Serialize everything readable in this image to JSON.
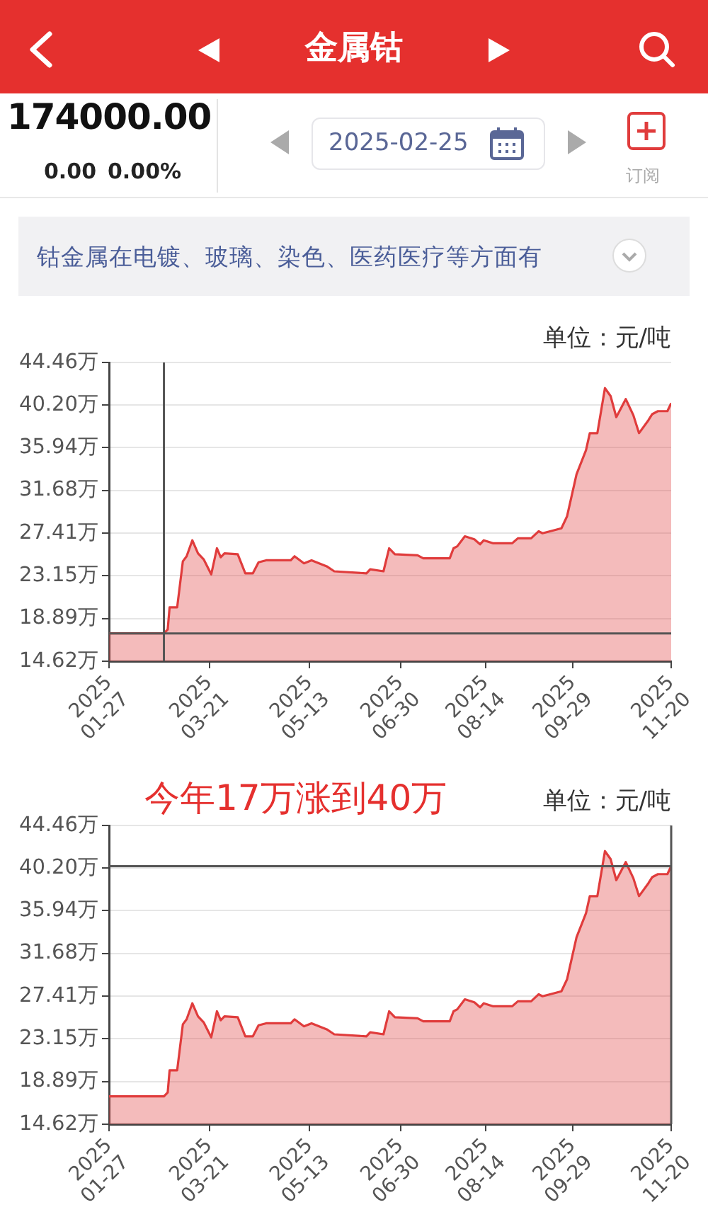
{
  "chart_data": [
    {
      "type": "other",
      "title": "金属钴",
      "annotations": [
        "174000.00",
        "0.00",
        "0.00%",
        "2025-02-25",
        "订阅",
        "钴金属在电镀、玻璃、染色、医药医疗等方面有"
      ]
    },
    {
      "type": "area",
      "annotations": [
        "单位：元/吨"
      ],
      "x": [
        "2025-01-27",
        "2025-02-20",
        "2025-02-25",
        "2025-02-27",
        "2025-02-28",
        "2025-03-04",
        "2025-03-07",
        "2025-03-09",
        "2025-03-12",
        "2025-03-15",
        "2025-03-18",
        "2025-03-22",
        "2025-03-25",
        "2025-03-27",
        "2025-03-29",
        "2025-04-05",
        "2025-04-09",
        "2025-04-13",
        "2025-04-16",
        "2025-04-20",
        "2025-05-03",
        "2025-05-05",
        "2025-05-10",
        "2025-05-14",
        "2025-05-22",
        "2025-05-26",
        "2025-06-12",
        "2025-06-14",
        "2025-06-21",
        "2025-06-24",
        "2025-06-27",
        "2025-07-09",
        "2025-07-12",
        "2025-07-26",
        "2025-07-28",
        "2025-07-30",
        "2025-08-03",
        "2025-08-08",
        "2025-08-11",
        "2025-08-13",
        "2025-08-18",
        "2025-08-28",
        "2025-08-31",
        "2025-09-07",
        "2025-09-11",
        "2025-09-13",
        "2025-09-17",
        "2025-09-23",
        "2025-09-26",
        "2025-10-01",
        "2025-10-06",
        "2025-10-08",
        "2025-10-12",
        "2025-10-16",
        "2025-10-19",
        "2025-10-22",
        "2025-10-27",
        "2025-10-31",
        "2025-11-03",
        "2025-11-08",
        "2025-11-10",
        "2025-11-13",
        "2025-11-18",
        "2025-11-20"
      ],
      "series": [
        {
          "color": "#e03c3c",
          "values": [
            17.4,
            17.4,
            17.4,
            17.8,
            20.0,
            20.0,
            24.6,
            25.1,
            26.7,
            25.4,
            24.8,
            23.3,
            25.9,
            25.0,
            25.4,
            25.3,
            23.4,
            23.4,
            24.5,
            24.7,
            24.7,
            25.1,
            24.4,
            24.7,
            24.1,
            23.6,
            23.4,
            23.8,
            23.6,
            25.9,
            25.3,
            25.2,
            24.9,
            24.9,
            25.9,
            26.1,
            27.1,
            26.8,
            26.3,
            26.7,
            26.4,
            26.4,
            26.9,
            26.9,
            27.6,
            27.4,
            27.6,
            27.9,
            29.1,
            33.3,
            35.7,
            37.4,
            37.4,
            41.9,
            41.1,
            39.0,
            40.8,
            39.2,
            37.4,
            38.7,
            39.3,
            39.6,
            39.6,
            40.4
          ]
        }
      ],
      "xlim": [
        "2025-01-27",
        "2025-11-20"
      ],
      "xticks": [
        {
          "value": "2025-01-27",
          "label": "2025\n01-27"
        },
        {
          "value": "2025-03-21",
          "label": "2025\n03-21"
        },
        {
          "value": "2025-05-13",
          "label": "2025\n05-13"
        },
        {
          "value": "2025-06-30",
          "label": "2025\n06-30"
        },
        {
          "value": "2025-08-14",
          "label": "2025\n08-14"
        },
        {
          "value": "2025-09-29",
          "label": "2025\n09-29"
        },
        {
          "value": "2025-11-20",
          "label": "2025\n11-20"
        }
      ],
      "ylim": [
        14.62,
        44.46
      ],
      "yticks": [
        {
          "value": 14.62,
          "label": "14.62万"
        },
        {
          "value": 18.89,
          "label": "18.89万"
        },
        {
          "value": 23.15,
          "label": "23.15万"
        },
        {
          "value": 27.41,
          "label": "27.41万"
        },
        {
          "value": 31.68,
          "label": "31.68万"
        },
        {
          "value": 35.94,
          "label": "35.94万"
        },
        {
          "value": 40.2,
          "label": "40.20万"
        },
        {
          "value": 44.46,
          "label": "44.46万"
        }
      ],
      "ref_lines": [
        {
          "axis": "x",
          "value": "2025-02-25",
          "color": "#555555"
        },
        {
          "axis": "y",
          "value": 17.4,
          "color": "#555555"
        }
      ],
      "grid": "y",
      "legend": false,
      "marker": "none",
      "line_style": "solid"
    },
    {
      "type": "area",
      "title": "今年17万涨到40万",
      "annotations": [
        "单位：元/吨"
      ],
      "x": [
        "2025-01-27",
        "2025-02-20",
        "2025-02-25",
        "2025-02-27",
        "2025-02-28",
        "2025-03-04",
        "2025-03-07",
        "2025-03-09",
        "2025-03-12",
        "2025-03-15",
        "2025-03-18",
        "2025-03-22",
        "2025-03-25",
        "2025-03-27",
        "2025-03-29",
        "2025-04-05",
        "2025-04-09",
        "2025-04-13",
        "2025-04-16",
        "2025-04-20",
        "2025-05-03",
        "2025-05-05",
        "2025-05-10",
        "2025-05-14",
        "2025-05-22",
        "2025-05-26",
        "2025-06-12",
        "2025-06-14",
        "2025-06-21",
        "2025-06-24",
        "2025-06-27",
        "2025-07-09",
        "2025-07-12",
        "2025-07-26",
        "2025-07-28",
        "2025-07-30",
        "2025-08-03",
        "2025-08-08",
        "2025-08-11",
        "2025-08-13",
        "2025-08-18",
        "2025-08-28",
        "2025-08-31",
        "2025-09-07",
        "2025-09-11",
        "2025-09-13",
        "2025-09-17",
        "2025-09-23",
        "2025-09-26",
        "2025-10-01",
        "2025-10-06",
        "2025-10-08",
        "2025-10-12",
        "2025-10-16",
        "2025-10-19",
        "2025-10-22",
        "2025-10-27",
        "2025-10-31",
        "2025-11-03",
        "2025-11-08",
        "2025-11-10",
        "2025-11-13",
        "2025-11-18",
        "2025-11-20"
      ],
      "series": [
        {
          "color": "#e03c3c",
          "values": [
            17.4,
            17.4,
            17.4,
            17.8,
            20.0,
            20.0,
            24.6,
            25.1,
            26.7,
            25.4,
            24.8,
            23.3,
            25.9,
            25.0,
            25.4,
            25.3,
            23.4,
            23.4,
            24.5,
            24.7,
            24.7,
            25.1,
            24.4,
            24.7,
            24.1,
            23.6,
            23.4,
            23.8,
            23.6,
            25.9,
            25.3,
            25.2,
            24.9,
            24.9,
            25.9,
            26.1,
            27.1,
            26.8,
            26.3,
            26.7,
            26.4,
            26.4,
            26.9,
            26.9,
            27.6,
            27.4,
            27.6,
            27.9,
            29.1,
            33.3,
            35.7,
            37.4,
            37.4,
            41.9,
            41.1,
            39.0,
            40.8,
            39.2,
            37.4,
            38.7,
            39.3,
            39.6,
            39.6,
            40.4
          ]
        }
      ],
      "xlim": [
        "2025-01-27",
        "2025-11-20"
      ],
      "xticks": [
        {
          "value": "2025-01-27",
          "label": "2025\n01-27"
        },
        {
          "value": "2025-03-21",
          "label": "2025\n03-21"
        },
        {
          "value": "2025-05-13",
          "label": "2025\n05-13"
        },
        {
          "value": "2025-06-30",
          "label": "2025\n06-30"
        },
        {
          "value": "2025-08-14",
          "label": "2025\n08-14"
        },
        {
          "value": "2025-09-29",
          "label": "2025\n09-29"
        },
        {
          "value": "2025-11-20",
          "label": "2025\n11-20"
        }
      ],
      "ylim": [
        14.62,
        44.46
      ],
      "yticks": [
        {
          "value": 14.62,
          "label": "14.62万"
        },
        {
          "value": 18.89,
          "label": "18.89万"
        },
        {
          "value": 23.15,
          "label": "23.15万"
        },
        {
          "value": 27.41,
          "label": "27.41万"
        },
        {
          "value": 31.68,
          "label": "31.68万"
        },
        {
          "value": 35.94,
          "label": "35.94万"
        },
        {
          "value": 40.2,
          "label": "40.20万"
        },
        {
          "value": 44.46,
          "label": "44.46万"
        }
      ],
      "ref_lines": [
        {
          "axis": "x",
          "value": "2025-11-20",
          "color": "#555555"
        },
        {
          "axis": "y",
          "value": 40.4,
          "color": "#555555"
        }
      ],
      "grid": "y",
      "legend": false,
      "marker": "none",
      "line_style": "solid"
    }
  ]
}
